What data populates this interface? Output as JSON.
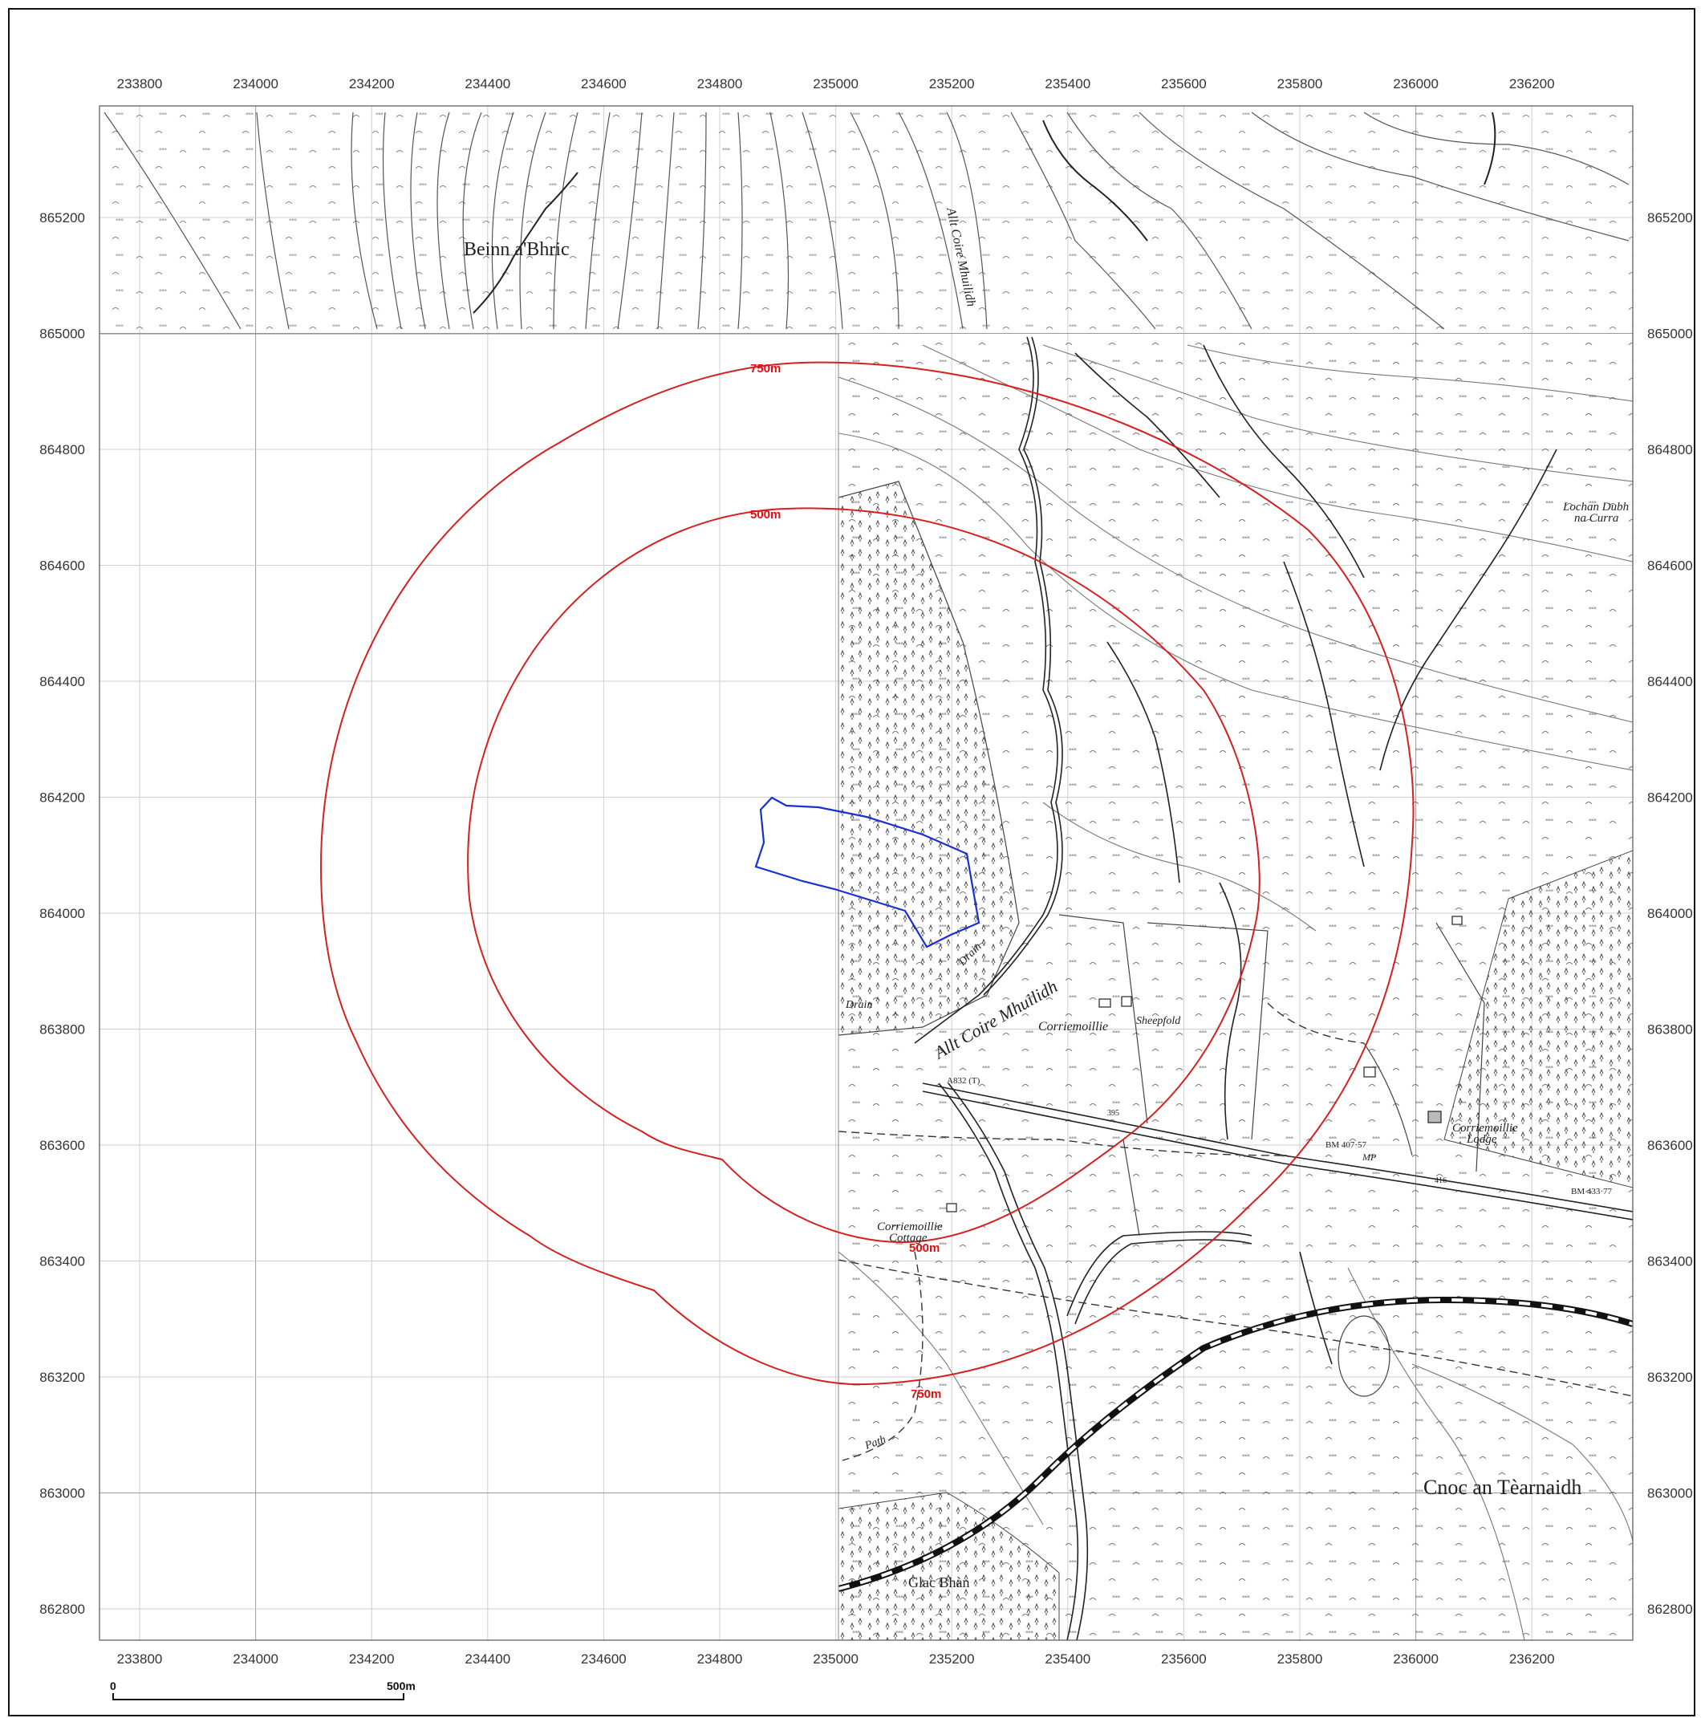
{
  "map": {
    "eastings": [
      "233800",
      "234000",
      "234200",
      "234400",
      "234600",
      "234800",
      "235000",
      "235200",
      "235400",
      "235600",
      "235800",
      "236000",
      "236200"
    ],
    "northings": [
      "865200",
      "865000",
      "864800",
      "864600",
      "864400",
      "864200",
      "864000",
      "863800",
      "863600",
      "863400",
      "863200",
      "863000",
      "862800"
    ],
    "place_names": {
      "beinn": "Beinn a'Bhric",
      "lochan": "Lochan Dubh",
      "lochan2": "na Curra",
      "corriemoillie": "Corriemoillie",
      "sheepfold": "Sheepfold",
      "lodge1": "Corriemoillie",
      "lodge2": "Lodge",
      "cottage1": "Corriemoillie",
      "cottage2": "Cottage",
      "cnoc": "Cnoc an Tèarnaidh",
      "glac": "Glac Bhàn",
      "allt": "Allt Coire Mhuilidh",
      "allt2": "Allt Coire Mhuilidh",
      "drain1": "Drain",
      "drain2": "Drain",
      "path": "Path",
      "road": "A832 (T)",
      "bm1": "BM 407·57",
      "mp": "MP",
      "bm2": "BM 433·77",
      "spot1": "395",
      "spot2": "416"
    },
    "radius_labels": {
      "r750_top": "750m",
      "r500_top": "500m",
      "r500_bottom": "500m",
      "r750_bottom": "750m"
    },
    "scale_bar": {
      "start": "0",
      "end": "500m"
    },
    "colors": {
      "buffer": "#d42020",
      "site": "#1a2fd0",
      "grid": "#c8c8c8",
      "linework": "#333333"
    }
  }
}
